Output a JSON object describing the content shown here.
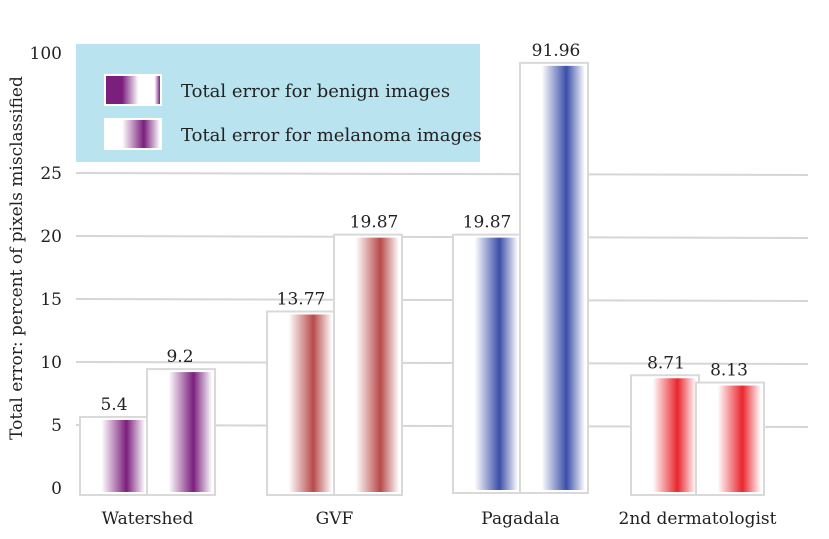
{
  "chart_data": {
    "type": "bar",
    "categories": [
      "Watershed",
      "GVF",
      "Pagadala",
      "2nd dermatologist"
    ],
    "series": [
      {
        "name": "Total error for benign images",
        "values": [
          5.4,
          13.77,
          19.87,
          8.71
        ]
      },
      {
        "name": "Total error for melanoma images",
        "values": [
          9.2,
          19.87,
          91.96,
          8.13
        ]
      }
    ],
    "ylabel": "Total error: percent of pixels misclassified",
    "y_ticks": [
      "0",
      "5",
      "10",
      "15",
      "20",
      "25",
      "100"
    ],
    "y_tick_values": [
      0,
      5,
      10,
      15,
      20,
      25,
      100
    ],
    "ylim": [
      0,
      100
    ],
    "y_axis_break": [
      25,
      100
    ],
    "grid": true,
    "legend_position": "top-left",
    "bar_colors": [
      "#7b1f7d",
      "#7b1f7d",
      "#b84a4a",
      "#b84a4a",
      "#3b4ea8",
      "#3b4ea8",
      "#e8262d",
      "#e8262d"
    ],
    "legend_colors": [
      "#7b1f7d",
      "#7b1f7d"
    ],
    "legend_background": "#b8e3ef"
  }
}
